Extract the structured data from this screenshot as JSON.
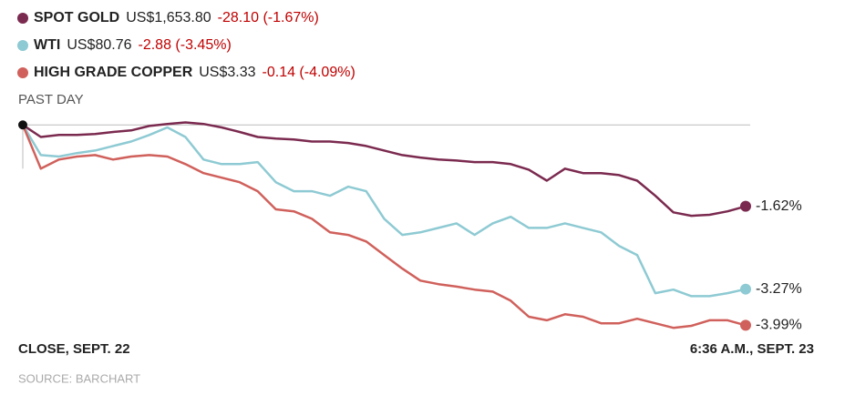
{
  "chart_data": {
    "type": "line",
    "subtitle": "PAST DAY",
    "source": "SOURCE: BARCHART",
    "zero_line": true,
    "ylim": [
      -4.2,
      0.15
    ],
    "categories": [
      "CLOSE, SEPT. 22",
      null,
      null,
      null,
      null,
      null,
      null,
      null,
      null,
      null,
      null,
      null,
      null,
      null,
      null,
      null,
      null,
      null,
      null,
      null,
      null,
      null,
      null,
      null,
      null,
      null,
      null,
      null,
      null,
      null,
      null,
      null,
      null,
      null,
      null,
      null,
      null,
      null,
      null,
      null,
      "6:36 A.M., SEPT. 23"
    ],
    "series": [
      {
        "name": "SPOT GOLD",
        "price": "US$1,653.80",
        "change": "-28.10 (-1.67%)",
        "color": "#7b2a4f",
        "values": [
          0,
          -0.24,
          -0.2,
          -0.2,
          -0.18,
          -0.14,
          -0.11,
          -0.02,
          0.02,
          0.05,
          0.02,
          -0.05,
          -0.14,
          -0.24,
          -0.27,
          -0.29,
          -0.33,
          -0.33,
          -0.36,
          -0.42,
          -0.51,
          -0.6,
          -0.65,
          -0.69,
          -0.71,
          -0.74,
          -0.74,
          -0.78,
          -0.89,
          -1.11,
          -0.87,
          -0.96,
          -0.96,
          -1.0,
          -1.11,
          -1.41,
          -1.74,
          -1.81,
          -1.79,
          -1.72,
          -1.62
        ],
        "value_labels": [
          null,
          null,
          null,
          null,
          null,
          null,
          null,
          null,
          null,
          null,
          null,
          null,
          null,
          null,
          null,
          null,
          null,
          null,
          null,
          null,
          null,
          null,
          null,
          null,
          null,
          null,
          null,
          null,
          null,
          null,
          null,
          null,
          null,
          null,
          null,
          null,
          null,
          null,
          null,
          null,
          "-1.62%"
        ]
      },
      {
        "name": "WTI",
        "price": "US$80.76",
        "change": "-2.88 (-3.45%)",
        "color": "#8ecad3",
        "values": [
          0,
          -0.6,
          -0.63,
          -0.56,
          -0.51,
          -0.42,
          -0.33,
          -0.2,
          -0.05,
          -0.24,
          -0.69,
          -0.78,
          -0.78,
          -0.74,
          -1.14,
          -1.32,
          -1.32,
          -1.41,
          -1.23,
          -1.32,
          -1.87,
          -2.19,
          -2.14,
          -2.05,
          -1.96,
          -2.19,
          -1.96,
          -1.83,
          -2.05,
          -2.05,
          -1.96,
          -2.05,
          -2.14,
          -2.41,
          -2.59,
          -3.35,
          -3.28,
          -3.41,
          -3.41,
          -3.35,
          -3.27
        ],
        "value_labels": [
          null,
          null,
          null,
          null,
          null,
          null,
          null,
          null,
          null,
          null,
          null,
          null,
          null,
          null,
          null,
          null,
          null,
          null,
          null,
          null,
          null,
          null,
          null,
          null,
          null,
          null,
          null,
          null,
          null,
          null,
          null,
          null,
          null,
          null,
          null,
          null,
          null,
          null,
          null,
          null,
          "-3.27%"
        ]
      },
      {
        "name": "HIGH GRADE COPPER",
        "price": "US$3.33",
        "change": "-0.14 (-4.09%)",
        "color": "#d0605b",
        "values": [
          0,
          -0.87,
          -0.69,
          -0.63,
          -0.6,
          -0.69,
          -0.63,
          -0.6,
          -0.63,
          -0.78,
          -0.96,
          -1.05,
          -1.14,
          -1.32,
          -1.68,
          -1.72,
          -1.87,
          -2.14,
          -2.19,
          -2.32,
          -2.59,
          -2.86,
          -3.1,
          -3.17,
          -3.22,
          -3.28,
          -3.32,
          -3.5,
          -3.82,
          -3.89,
          -3.77,
          -3.82,
          -3.95,
          -3.95,
          -3.86,
          -3.95,
          -4.04,
          -4.0,
          -3.89,
          -3.89,
          -3.99
        ],
        "value_labels": [
          null,
          null,
          null,
          null,
          null,
          null,
          null,
          null,
          null,
          null,
          null,
          null,
          null,
          null,
          null,
          null,
          null,
          null,
          null,
          null,
          null,
          null,
          null,
          null,
          null,
          null,
          null,
          null,
          null,
          null,
          null,
          null,
          null,
          null,
          null,
          null,
          null,
          null,
          null,
          null,
          "-3.99%"
        ]
      }
    ]
  }
}
